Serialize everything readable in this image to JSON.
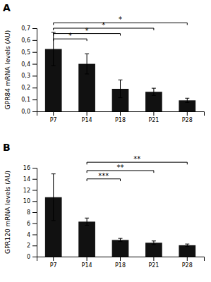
{
  "chart_data": [
    {
      "type": "bar",
      "title": "A",
      "categories": [
        "P7",
        "P14",
        "P18",
        "P21",
        "P28"
      ],
      "values": [
        0.525,
        0.4,
        0.19,
        0.165,
        0.093
      ],
      "errors": [
        0.14,
        0.085,
        0.075,
        0.03,
        0.018
      ],
      "color": "#111111",
      "y_label": "GPR84 mRNA levels (AU)",
      "ylim": [
        0.0,
        0.7
      ],
      "yticks": [
        {
          "value": 0.0,
          "label": "0,0"
        },
        {
          "value": 0.1,
          "label": "0,1"
        },
        {
          "value": 0.2,
          "label": "0,2"
        },
        {
          "value": 0.3,
          "label": "0,3"
        },
        {
          "value": 0.4,
          "label": "0,4"
        },
        {
          "value": 0.5,
          "label": "0,5"
        },
        {
          "value": 0.6,
          "label": "0,6"
        },
        {
          "value": 0.7,
          "label": "0,7"
        }
      ],
      "grid": false,
      "annotations": [
        {
          "from": "P7",
          "to": "P28",
          "y": 0.745,
          "label": "*"
        },
        {
          "from": "P7",
          "to": "P21",
          "y": 0.7,
          "label": "*"
        },
        {
          "from": "P7",
          "to": "P18",
          "y": 0.655,
          "label": "*"
        },
        {
          "from": "P7",
          "to": "P14",
          "y": 0.61,
          "label": "*"
        }
      ]
    },
    {
      "type": "bar",
      "title": "B",
      "categories": [
        "P7",
        "P14",
        "P18",
        "P21",
        "P28"
      ],
      "values": [
        10.7,
        6.3,
        3.0,
        2.5,
        2.05
      ],
      "errors": [
        4.2,
        0.65,
        0.28,
        0.32,
        0.22
      ],
      "color": "#111111",
      "y_label": "GPR120 mRNA levels (AU)",
      "ylim": [
        0,
        16
      ],
      "yticks": [
        0,
        2,
        4,
        6,
        8,
        10,
        12,
        14,
        16
      ],
      "grid": false,
      "annotations": [
        {
          "from": "P14",
          "to": "P28",
          "y": 17.0,
          "label": "**"
        },
        {
          "from": "P14",
          "to": "P21",
          "y": 15.5,
          "label": "**"
        },
        {
          "from": "P14",
          "to": "P18",
          "y": 14.0,
          "label": "***"
        }
      ]
    }
  ]
}
